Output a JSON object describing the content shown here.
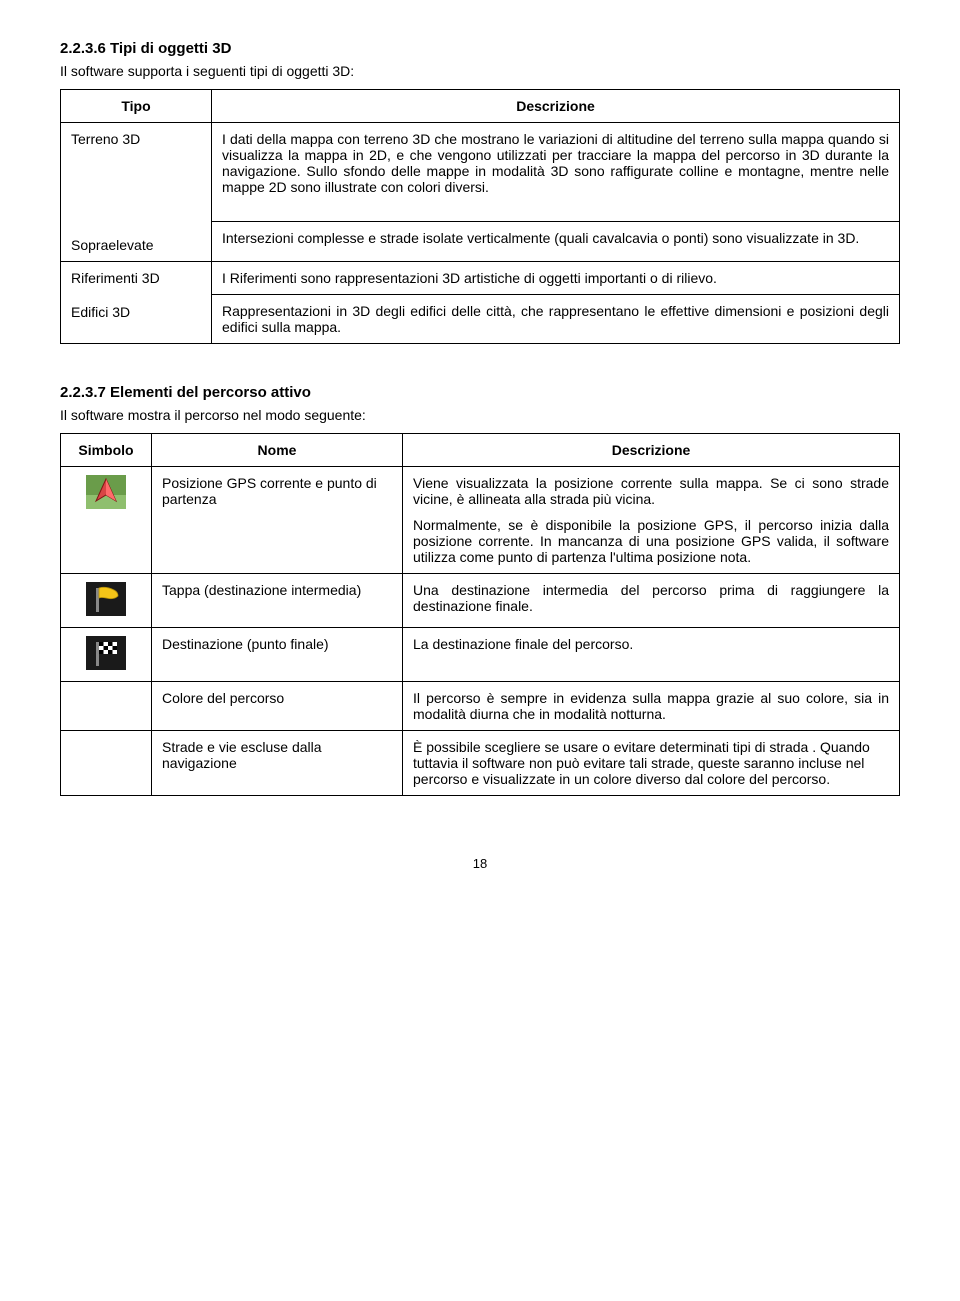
{
  "section1": {
    "heading": "2.2.3.6 Tipi di oggetti 3D",
    "intro": "Il software supporta i seguenti tipi di oggetti 3D:",
    "headers": {
      "col1": "Tipo",
      "col2": "Descrizione"
    },
    "rows": [
      {
        "type": "Terreno 3D",
        "desc": "I dati della mappa con terreno 3D che mostrano le variazioni di altitudine del terreno sulla mappa quando si visualizza la mappa in 2D, e che vengono utilizzati per tracciare la mappa del percorso in 3D durante la navigazione. Sullo sfondo delle mappe in modalità 3D sono raffigurate colline e montagne, mentre nelle mappe 2D sono illustrate con colori diversi."
      },
      {
        "type": "Sopraelevate",
        "desc": "Intersezioni complesse e strade isolate verticalmente (quali cavalcavia o ponti) sono visualizzate in 3D."
      },
      {
        "type": "Riferimenti 3D",
        "desc": "I Riferimenti sono rappresentazioni 3D artistiche di oggetti importanti o di rilievo."
      },
      {
        "type": "Edifici 3D",
        "desc": "Rappresentazioni in 3D degli edifici delle città, che rappresentano le effettive dimensioni e posizioni degli edifici sulla mappa."
      }
    ]
  },
  "section2": {
    "heading": "2.2.3.7 Elementi del percorso attivo",
    "intro": "Il software mostra il percorso nel modo seguente:",
    "headers": {
      "col1": "Simbolo",
      "col2": "Nome",
      "col3": "Descrizione"
    },
    "rows": [
      {
        "icon": "gps-position-icon",
        "name": "Posizione GPS corrente  e punto di partenza",
        "desc1": "Viene visualizzata la posizione corrente sulla mappa. Se ci sono strade vicine, è allineata alla strada più vicina.",
        "desc2": "Normalmente, se è disponibile la posizione GPS, il percorso inizia dalla posizione corrente. In mancanza di una posizione GPS valida, il software utilizza come punto di partenza l'ultima posizione nota."
      },
      {
        "icon": "waypoint-flag-icon",
        "name": "Tappa (destinazione intermedia)",
        "desc1": "Una destinazione intermedia del percorso prima di raggiungere la destinazione finale."
      },
      {
        "icon": "destination-flag-icon",
        "name": "Destinazione (punto finale)",
        "desc1": "La destinazione finale del percorso."
      },
      {
        "icon": "",
        "name": "Colore del percorso",
        "desc1": "Il percorso è sempre in evidenza sulla mappa grazie al suo colore, sia in modalità diurna che in modalità notturna."
      },
      {
        "icon": "",
        "name": "Strade e vie escluse dalla navigazione",
        "desc1": "È possibile scegliere se usare o evitare determinati tipi di strada . Quando tuttavia il software non può evitare tali strade, queste saranno incluse nel percorso e visualizzate in un colore diverso dal colore del percorso."
      }
    ]
  },
  "page_number": "18",
  "icon_svg": {
    "gps": "<svg viewBox='0 0 40 34' width='40' height='34'><rect x='0' y='0' width='40' height='34' fill='#6a9c4a'/><rect x='0' y='20' width='40' height='14' fill='#8fbf6e'/><polygon points='20,4 10,26 20,20 30,26' fill='#d94545' stroke='#801515' stroke-width='1'/><polygon points='20,4 20,20 30,26' fill='#ff6b6b'/></svg>",
    "waypoint": "<svg viewBox='0 0 40 34' width='40' height='34'><rect x='0' y='0' width='40' height='34' fill='#1a1a1a'/><rect x='10' y='6' width='3' height='24' fill='#888'/><path d='M13 6 Q20 4 28 8 Q32 10 32 14 Q28 18 20 16 Q15 15 13 16 Z' fill='#f5c518' stroke='#b38f0a' stroke-width='0.8'/></svg>",
    "destination": "<svg viewBox='0 0 40 34' width='40' height='34'><rect x='0' y='0' width='40' height='34' fill='#1a1a1a'/><rect x='10' y='6' width='3' height='24' fill='#888'/><g><rect x='13' y='6' width='18' height='12' fill='#fff'/><rect x='13' y='6' width='4.5' height='4' fill='#000'/><rect x='22' y='6' width='4.5' height='4' fill='#000'/><rect x='17.5' y='10' width='4.5' height='4' fill='#000'/><rect x='26.5' y='10' width='4.5' height='4' fill='#000'/><rect x='13' y='14' width='4.5' height='4' fill='#000'/><rect x='22' y='14' width='4.5' height='4' fill='#000'/></g></svg>"
  }
}
